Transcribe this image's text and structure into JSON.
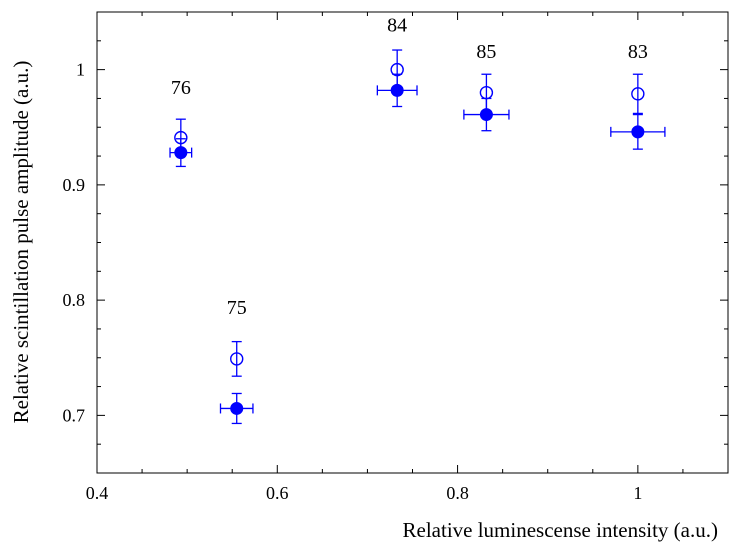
{
  "chart_data": {
    "type": "scatter",
    "title": "",
    "xlabel": "Relative luminescense intensity (a.u.)",
    "ylabel": "Relative scintillation pulse amplitude (a.u.)",
    "xlim": [
      0.4,
      1.1
    ],
    "ylim": [
      0.65,
      1.05
    ],
    "xticks": [
      0.4,
      0.6,
      0.8,
      1.0
    ],
    "xtick_labels": [
      "0.4",
      "0.6",
      "0.8",
      "1"
    ],
    "yticks": [
      0.7,
      0.8,
      0.9,
      1.0
    ],
    "ytick_labels": [
      "0.7",
      "0.8",
      "0.9",
      "1"
    ],
    "grid": false,
    "color": "#0000ff",
    "series": [
      {
        "marker": "open-circle",
        "points": [
          {
            "x": 0.493,
            "y": 0.941,
            "yerr": 0.016
          },
          {
            "x": 0.555,
            "y": 0.749,
            "yerr": 0.015
          },
          {
            "x": 0.733,
            "y": 1.0,
            "yerr": 0.017
          },
          {
            "x": 0.832,
            "y": 0.98,
            "yerr": 0.016
          },
          {
            "x": 1.0,
            "y": 0.979,
            "yerr": 0.017
          }
        ]
      },
      {
        "marker": "filled-circle",
        "points": [
          {
            "x": 0.493,
            "y": 0.928,
            "xerr": 0.012,
            "yerr": 0.012
          },
          {
            "x": 0.555,
            "y": 0.706,
            "xerr": 0.018,
            "yerr": 0.013
          },
          {
            "x": 0.733,
            "y": 0.982,
            "xerr": 0.022,
            "yerr": 0.014
          },
          {
            "x": 0.832,
            "y": 0.961,
            "xerr": 0.025,
            "yerr": 0.014
          },
          {
            "x": 1.0,
            "y": 0.946,
            "xerr": 0.03,
            "yerr": 0.015
          }
        ]
      }
    ],
    "annotations": [
      {
        "text": "76",
        "x": 0.493,
        "y": 0.985
      },
      {
        "text": "75",
        "x": 0.555,
        "y": 0.794
      },
      {
        "text": "84",
        "x": 0.733,
        "y": 1.039
      },
      {
        "text": "85",
        "x": 0.832,
        "y": 1.016
      },
      {
        "text": "83",
        "x": 1.0,
        "y": 1.016
      }
    ]
  }
}
